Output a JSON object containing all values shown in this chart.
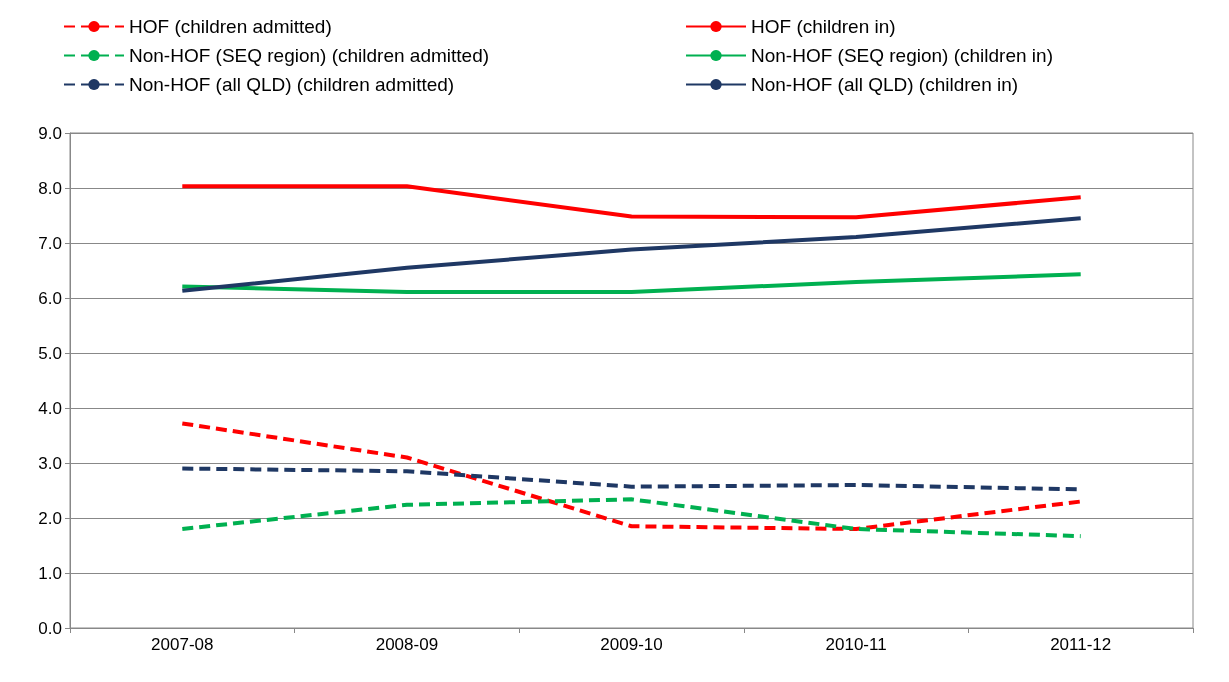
{
  "chart_data": {
    "type": "line",
    "categories": [
      "2007-08",
      "2008-09",
      "2009-10",
      "2010-11",
      "2011-12"
    ],
    "series": [
      {
        "name": "HOF (children admitted)",
        "color": "#ff0000",
        "line_style": "dashed",
        "values": [
          3.72,
          3.1,
          1.85,
          1.8,
          2.3
        ]
      },
      {
        "name": "HOF (children in)",
        "color": "#ff0000",
        "line_style": "solid",
        "values": [
          8.03,
          8.03,
          7.48,
          7.47,
          7.83
        ]
      },
      {
        "name": "Non-HOF (SEQ region) (children admitted)",
        "color": "#00b050",
        "line_style": "dashed",
        "values": [
          1.8,
          2.24,
          2.34,
          1.8,
          1.67
        ]
      },
      {
        "name": "Non-HOF (SEQ region) (children in)",
        "color": "#00b050",
        "line_style": "solid",
        "values": [
          6.21,
          6.11,
          6.11,
          6.29,
          6.43
        ]
      },
      {
        "name": "Non-HOF (all QLD) (children admitted)",
        "color": "#1f3864",
        "line_style": "dashed",
        "values": [
          2.9,
          2.85,
          2.57,
          2.6,
          2.52
        ]
      },
      {
        "name": "Non-HOF (all QLD) (children in)",
        "color": "#1f3864",
        "line_style": "solid",
        "values": [
          6.13,
          6.55,
          6.88,
          7.11,
          7.45
        ]
      }
    ],
    "ylim": [
      0,
      9
    ],
    "yticks": [
      {
        "value": 0,
        "label": "0.0"
      },
      {
        "value": 1,
        "label": "1.0"
      },
      {
        "value": 2,
        "label": "2.0"
      },
      {
        "value": 3,
        "label": "3.0"
      },
      {
        "value": 4,
        "label": "4.0"
      },
      {
        "value": 5,
        "label": "5.0"
      },
      {
        "value": 6,
        "label": "6.0"
      },
      {
        "value": 7,
        "label": "7.0"
      },
      {
        "value": 8,
        "label": "8.0"
      },
      {
        "value": 9,
        "label": "9.0"
      }
    ],
    "grid": "y",
    "legend": "top",
    "marker": "none"
  }
}
